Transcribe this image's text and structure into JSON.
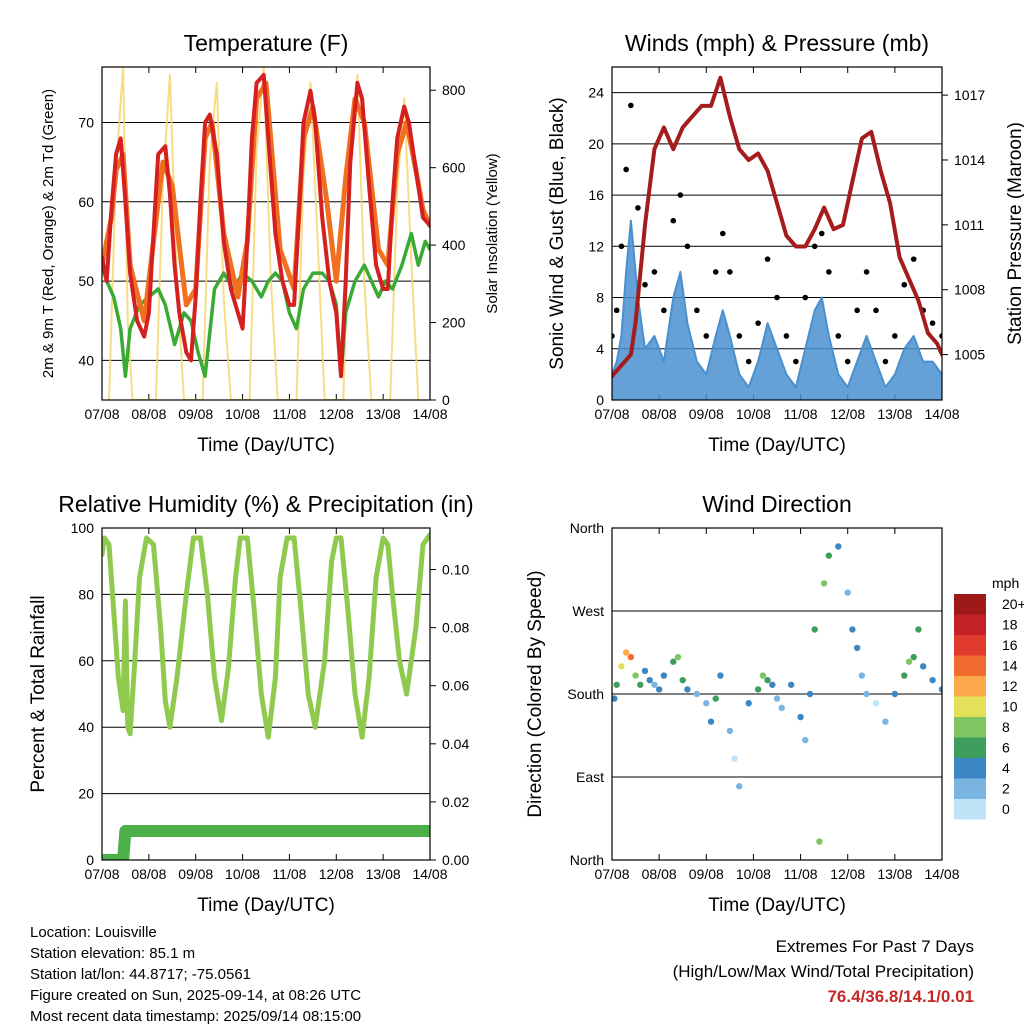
{
  "chart_data": [
    {
      "type": "line",
      "title": "Temperature (F)",
      "xlabel": "Time (Day/UTC)",
      "ylabel": "2m & 9m T (Red, Orange) & 2m Td (Green)",
      "y2label": "Solar Insolation (Yellow)",
      "xticks": [
        "07/08",
        "08/08",
        "09/08",
        "10/08",
        "11/08",
        "12/08",
        "13/08",
        "14/08"
      ],
      "ylim": [
        35,
        77
      ],
      "yticks": [
        40,
        50,
        60,
        70
      ],
      "y2lim": [
        0,
        860
      ],
      "y2ticks": [
        0,
        200,
        400,
        600,
        800
      ],
      "grid": true,
      "colors": {
        "t2m": "#d42020",
        "t9m": "#f07020",
        "td2m": "#3aaa35",
        "solar": "#f5d76e"
      },
      "series": [
        {
          "key": "t2m",
          "x": [
            0,
            0.1,
            0.2,
            0.3,
            0.4,
            0.5,
            0.6,
            0.75,
            0.9,
            1.0,
            1.1,
            1.2,
            1.35,
            1.45,
            1.55,
            1.65,
            1.8,
            1.9,
            2.0,
            2.1,
            2.2,
            2.3,
            2.45,
            2.6,
            2.75,
            2.9,
            3.0,
            3.1,
            3.2,
            3.3,
            3.45,
            3.55,
            3.7,
            3.85,
            4.0,
            4.1,
            4.2,
            4.3,
            4.45,
            4.55,
            4.7,
            4.85,
            5.0,
            5.1,
            5.2,
            5.3,
            5.45,
            5.55,
            5.7,
            5.85,
            6.0,
            6.1,
            6.2,
            6.3,
            6.45,
            6.55,
            6.7,
            6.85,
            7.0
          ],
          "y": [
            53,
            50,
            59,
            66,
            68,
            60,
            51,
            45,
            43,
            46,
            56,
            66,
            67,
            61,
            52,
            46,
            41,
            40,
            48,
            60,
            70,
            71,
            66,
            55,
            49,
            46,
            44,
            55,
            68,
            75,
            76,
            68,
            56,
            50,
            47,
            47,
            58,
            70,
            74,
            70,
            58,
            50,
            46,
            38,
            50,
            65,
            75,
            73,
            62,
            52,
            49,
            49,
            60,
            68,
            72,
            70,
            64,
            58,
            57
          ]
        },
        {
          "key": "t9m",
          "x": [
            0,
            0.2,
            0.3,
            0.45,
            0.6,
            0.9,
            1.1,
            1.3,
            1.5,
            1.8,
            2.0,
            2.2,
            2.35,
            2.6,
            2.9,
            3.1,
            3.3,
            3.5,
            3.8,
            4.1,
            4.3,
            4.5,
            4.8,
            5.0,
            5.2,
            5.4,
            5.6,
            5.9,
            6.1,
            6.3,
            6.5,
            6.7,
            6.85,
            7.0
          ],
          "y": [
            52,
            58,
            64,
            66,
            52,
            45,
            55,
            65,
            62,
            47,
            49,
            68,
            70,
            56,
            48,
            55,
            73,
            75,
            54,
            49,
            68,
            72,
            60,
            50,
            63,
            73,
            70,
            54,
            52,
            66,
            70,
            64,
            59,
            57
          ]
        },
        {
          "key": "td2m",
          "x": [
            0,
            0.1,
            0.25,
            0.4,
            0.5,
            0.6,
            0.8,
            1.0,
            1.2,
            1.35,
            1.55,
            1.75,
            1.9,
            2.05,
            2.2,
            2.4,
            2.6,
            2.8,
            3.0,
            3.2,
            3.4,
            3.55,
            3.7,
            3.85,
            4.0,
            4.15,
            4.3,
            4.5,
            4.7,
            4.85,
            5.0,
            5.1,
            5.2,
            5.4,
            5.6,
            5.75,
            5.9,
            6.05,
            6.2,
            6.4,
            6.6,
            6.75,
            6.9,
            7.0
          ],
          "y": [
            52,
            50,
            48,
            44,
            38,
            44,
            47,
            48,
            49,
            47,
            42,
            46,
            45,
            41,
            38,
            49,
            51,
            49,
            51,
            50,
            48,
            50,
            51,
            50,
            46,
            44,
            49,
            51,
            51,
            50,
            47,
            38,
            46,
            50,
            52,
            50,
            48,
            50,
            49,
            52,
            56,
            52,
            55,
            54
          ]
        },
        {
          "key": "solar",
          "x": [
            0.15,
            0.3,
            0.45,
            0.55,
            0.65,
            1.15,
            1.3,
            1.45,
            1.6,
            1.75,
            2.15,
            2.3,
            2.45,
            2.6,
            2.75,
            3.15,
            3.3,
            3.45,
            3.6,
            3.75,
            4.15,
            4.3,
            4.45,
            4.6,
            4.75,
            5.15,
            5.3,
            5.45,
            5.6,
            5.75,
            6.15,
            6.3,
            6.45,
            6.6,
            6.75
          ],
          "y": [
            0,
            600,
            860,
            200,
            0,
            0,
            560,
            840,
            300,
            0,
            0,
            620,
            820,
            260,
            0,
            0,
            640,
            860,
            320,
            0,
            0,
            580,
            820,
            420,
            0,
            0,
            620,
            840,
            300,
            0,
            0,
            540,
            780,
            360,
            0
          ]
        }
      ]
    },
    {
      "type": "line",
      "title": "Winds (mph) & Pressure (mb)",
      "xlabel": "Time (Day/UTC)",
      "ylabel": "Sonic Wind & Gust (Blue, Black)",
      "y2label": "Station Pressure (Maroon)",
      "xticks": [
        "07/08",
        "08/08",
        "09/08",
        "10/08",
        "11/08",
        "12/08",
        "13/08",
        "14/08"
      ],
      "ylim": [
        0,
        26
      ],
      "yticks": [
        0,
        4,
        8,
        12,
        16,
        20,
        24
      ],
      "y2lim": [
        1002.9,
        1018.3
      ],
      "y2ticks": [
        1005,
        1008,
        1011,
        1014,
        1017
      ],
      "grid": true,
      "colors": {
        "wind": "#4a90d0",
        "gust": "#000000",
        "pressure": "#a51c1c"
      },
      "series": [
        {
          "key": "wind",
          "x": [
            0,
            0.1,
            0.2,
            0.3,
            0.4,
            0.55,
            0.7,
            0.9,
            1.1,
            1.3,
            1.45,
            1.6,
            1.8,
            2.0,
            2.2,
            2.35,
            2.5,
            2.7,
            2.9,
            3.1,
            3.3,
            3.5,
            3.7,
            3.9,
            4.1,
            4.3,
            4.45,
            4.6,
            4.8,
            5.0,
            5.2,
            5.4,
            5.6,
            5.8,
            6.0,
            6.2,
            6.4,
            6.6,
            6.8,
            7.0
          ],
          "y": [
            2,
            3,
            5,
            10,
            14,
            8,
            4,
            5,
            3,
            8,
            10,
            6,
            3,
            2,
            5,
            7,
            5,
            2,
            1,
            3,
            6,
            4,
            2,
            1,
            4,
            7,
            8,
            5,
            2,
            1,
            3,
            5,
            3,
            1,
            2,
            4,
            5,
            3,
            3,
            2
          ]
        },
        {
          "key": "gust",
          "x": [
            0,
            0.1,
            0.2,
            0.3,
            0.4,
            0.55,
            0.7,
            0.9,
            1.1,
            1.3,
            1.45,
            1.6,
            1.8,
            2.0,
            2.2,
            2.35,
            2.5,
            2.7,
            2.9,
            3.1,
            3.3,
            3.5,
            3.7,
            3.9,
            4.1,
            4.3,
            4.45,
            4.6,
            4.8,
            5.0,
            5.2,
            5.4,
            5.6,
            5.8,
            6.0,
            6.2,
            6.4,
            6.6,
            6.8,
            7.0
          ],
          "y": [
            5,
            7,
            12,
            18,
            23,
            15,
            9,
            10,
            7,
            14,
            16,
            12,
            7,
            5,
            10,
            13,
            10,
            5,
            3,
            6,
            11,
            8,
            5,
            3,
            8,
            12,
            13,
            10,
            5,
            3,
            7,
            10,
            7,
            3,
            5,
            9,
            11,
            7,
            6,
            5
          ]
        },
        {
          "key": "pressure",
          "x": [
            0,
            0.2,
            0.4,
            0.5,
            0.7,
            0.9,
            1.1,
            1.3,
            1.5,
            1.7,
            1.9,
            2.1,
            2.3,
            2.5,
            2.7,
            2.9,
            3.1,
            3.3,
            3.5,
            3.7,
            3.9,
            4.1,
            4.3,
            4.5,
            4.7,
            4.9,
            5.1,
            5.3,
            5.5,
            5.7,
            5.9,
            6.1,
            6.3,
            6.5,
            6.7,
            6.9,
            7.0
          ],
          "y": [
            1004,
            1004.5,
            1005,
            1006.5,
            1011,
            1014.5,
            1015.5,
            1014.5,
            1015.5,
            1016,
            1016.5,
            1016.5,
            1017.8,
            1016,
            1014.5,
            1014,
            1014.3,
            1013.5,
            1012,
            1010.5,
            1010,
            1010,
            1010.8,
            1011.8,
            1010.8,
            1011,
            1013,
            1015,
            1015.3,
            1013.5,
            1012,
            1009.5,
            1008.5,
            1007.5,
            1006,
            1005.5,
            1005
          ]
        }
      ]
    },
    {
      "type": "line",
      "title": "Relative Humidity (%) & Precipitation (in)",
      "xlabel": "Time (Day/UTC)",
      "ylabel": "Percent & Total Rainfall",
      "xticks": [
        "07/08",
        "08/08",
        "09/08",
        "10/08",
        "11/08",
        "12/08",
        "13/08",
        "14/08"
      ],
      "ylim": [
        0,
        100
      ],
      "yticks": [
        0,
        20,
        40,
        60,
        80,
        100
      ],
      "y2lim": [
        0,
        0.1143
      ],
      "y2ticks": [
        "0.00",
        "0.02",
        "0.04",
        "0.06",
        "0.08",
        "0.10"
      ],
      "grid": true,
      "colors": {
        "rh": "#8fca4f",
        "precip": "#4caf48"
      },
      "series": [
        {
          "key": "rh",
          "x": [
            0,
            0.05,
            0.15,
            0.25,
            0.35,
            0.45,
            0.5,
            0.55,
            0.6,
            0.7,
            0.8,
            0.95,
            1.1,
            1.25,
            1.35,
            1.45,
            1.6,
            1.8,
            1.95,
            2.1,
            2.25,
            2.4,
            2.55,
            2.7,
            2.85,
            2.95,
            3.1,
            3.25,
            3.4,
            3.55,
            3.7,
            3.8,
            3.95,
            4.1,
            4.25,
            4.4,
            4.55,
            4.75,
            4.9,
            5.0,
            5.1,
            5.25,
            5.4,
            5.55,
            5.7,
            5.85,
            6.0,
            6.1,
            6.2,
            6.35,
            6.5,
            6.7,
            6.85,
            7.0
          ],
          "y": [
            92,
            97,
            95,
            75,
            55,
            45,
            78,
            40,
            38,
            60,
            85,
            97,
            95,
            70,
            48,
            40,
            55,
            80,
            97,
            97,
            80,
            55,
            42,
            58,
            85,
            97,
            97,
            75,
            50,
            37,
            55,
            85,
            97,
            97,
            75,
            50,
            40,
            60,
            90,
            97,
            97,
            75,
            50,
            37,
            55,
            85,
            97,
            95,
            80,
            60,
            50,
            70,
            95,
            98
          ]
        },
        {
          "key": "precip",
          "x": [
            0,
            0.45,
            0.5,
            7.0
          ],
          "y": [
            0,
            0,
            0.01,
            0.01
          ]
        }
      ]
    },
    {
      "type": "scatter",
      "title": "Wind Direction",
      "xlabel": "Time (Day/UTC)",
      "ylabel": "Direction (Colored By Speed)",
      "xticks": [
        "07/08",
        "08/08",
        "09/08",
        "10/08",
        "11/08",
        "12/08",
        "13/08",
        "14/08"
      ],
      "yticks": [
        "North",
        "East",
        "South",
        "West",
        "North"
      ],
      "ylim": [
        0,
        360
      ],
      "grid": true,
      "legend": {
        "title": "mph",
        "position": "right",
        "labels": [
          "20+",
          "18",
          "16",
          "14",
          "12",
          "10",
          "8",
          "6",
          "4",
          "2",
          "0"
        ],
        "colors": [
          "#9e1a1a",
          "#c42127",
          "#e03a2f",
          "#f26b2e",
          "#fba94b",
          "#e5e05a",
          "#7fc562",
          "#3f9e5e",
          "#3b86c3",
          "#7ab5e1",
          "#bfe3f7"
        ]
      },
      "series": [
        {
          "name": "direction",
          "x": [
            0.05,
            0.1,
            0.2,
            0.3,
            0.4,
            0.5,
            0.6,
            0.7,
            0.8,
            0.9,
            1.0,
            1.1,
            1.3,
            1.4,
            1.5,
            1.6,
            1.8,
            2.0,
            2.1,
            2.2,
            2.3,
            2.5,
            2.6,
            2.7,
            2.9,
            3.1,
            3.2,
            3.3,
            3.4,
            3.5,
            3.6,
            3.8,
            4.0,
            4.1,
            4.2,
            4.3,
            4.4,
            4.5,
            4.6,
            4.8,
            5.0,
            5.1,
            5.2,
            5.3,
            5.4,
            5.6,
            5.8,
            6.0,
            6.2,
            6.3,
            6.4,
            6.5,
            6.6,
            6.8,
            7.0
          ],
          "y": [
            175,
            190,
            210,
            225,
            220,
            200,
            190,
            205,
            195,
            190,
            185,
            200,
            215,
            220,
            195,
            185,
            180,
            170,
            150,
            175,
            200,
            140,
            110,
            80,
            170,
            185,
            200,
            195,
            190,
            175,
            165,
            190,
            155,
            130,
            180,
            250,
            20,
            300,
            330,
            340,
            290,
            250,
            230,
            200,
            180,
            170,
            150,
            180,
            200,
            215,
            220,
            250,
            210,
            195,
            185
          ],
          "speed": [
            4,
            6,
            10,
            12,
            14,
            8,
            6,
            4,
            4,
            2,
            4,
            4,
            6,
            8,
            6,
            4,
            2,
            2,
            4,
            6,
            4,
            2,
            0,
            2,
            4,
            6,
            8,
            6,
            4,
            2,
            2,
            4,
            4,
            2,
            4,
            6,
            8,
            8,
            6,
            4,
            2,
            4,
            4,
            2,
            2,
            0,
            2,
            4,
            6,
            8,
            6,
            6,
            4,
            4,
            4
          ]
        }
      ]
    }
  ],
  "station_info": {
    "location": "Location: Louisville",
    "elevation": "Station elevation: 85.1 m",
    "latlon": "Station lat/lon: 44.8717; -75.0561",
    "created": "Figure created on Sun, 2025-09-14, at 08:26 UTC",
    "recent": "Most recent data timestamp: 2025/09/14 08:15:00"
  },
  "extremes": {
    "title": "Extremes For Past 7 Days",
    "subtitle": "(High/Low/Max Wind/Total Precipitation)",
    "values": "76.4/36.8/14.1/0.01"
  }
}
